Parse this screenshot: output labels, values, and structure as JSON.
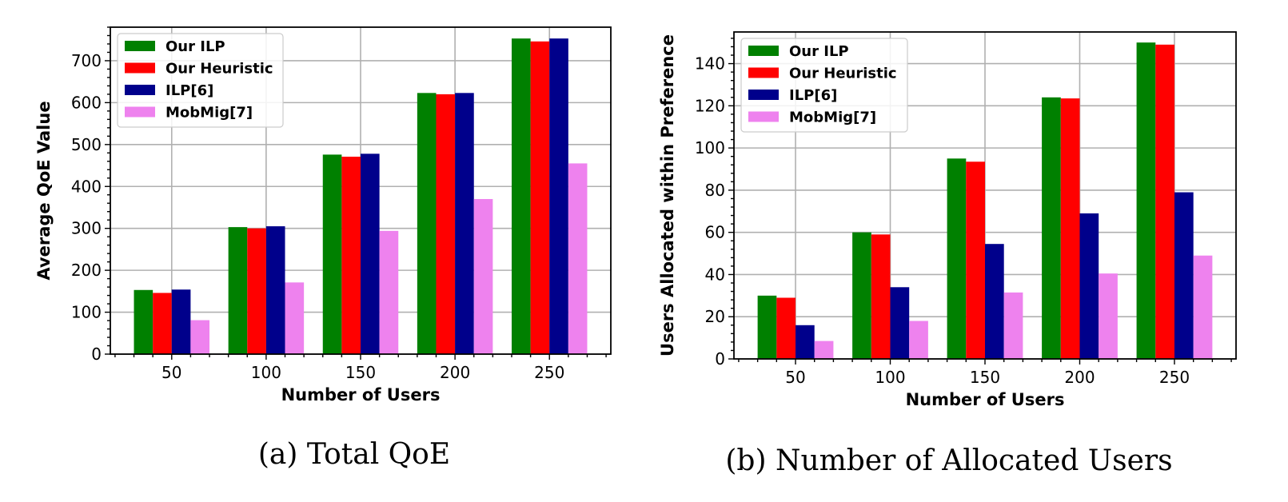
{
  "colors": {
    "Our ILP": "#008000",
    "Our Heuristic": "#ff0000",
    "ILP[6]": "#00008b",
    "MobMig[7]": "#ee82ee"
  },
  "chart_data": [
    {
      "type": "bar",
      "caption": "(a) Total QoE",
      "xlabel": "Number of Users",
      "ylabel": "Average QoE Value",
      "categories": [
        "50",
        "100",
        "150",
        "200",
        "250"
      ],
      "ylim": [
        0,
        780
      ],
      "yticks": [
        0,
        100,
        200,
        300,
        400,
        500,
        600,
        700
      ],
      "grid": true,
      "legend_position": "top-left",
      "series": [
        {
          "name": "Our ILP",
          "values": [
            153,
            303,
            476,
            623,
            753
          ]
        },
        {
          "name": "Our Heuristic",
          "values": [
            146,
            300,
            471,
            620,
            746
          ]
        },
        {
          "name": "ILP[6]",
          "values": [
            154,
            305,
            478,
            623,
            753
          ]
        },
        {
          "name": "MobMig[7]",
          "values": [
            81,
            171,
            294,
            370,
            455
          ]
        }
      ]
    },
    {
      "type": "bar",
      "caption": "(b) Number of Allocated Users",
      "xlabel": "Number of Users",
      "ylabel": "Users Allocated within Preference",
      "categories": [
        "50",
        "100",
        "150",
        "200",
        "250"
      ],
      "ylim": [
        0,
        155
      ],
      "yticks": [
        0,
        20,
        40,
        60,
        80,
        100,
        120,
        140
      ],
      "grid": true,
      "legend_position": "top-left",
      "series": [
        {
          "name": "Our ILP",
          "values": [
            30,
            60,
            95,
            124,
            150
          ]
        },
        {
          "name": "Our Heuristic",
          "values": [
            29,
            59,
            93.5,
            123.5,
            149
          ]
        },
        {
          "name": "ILP[6]",
          "values": [
            16,
            34,
            54.5,
            69,
            79
          ]
        },
        {
          "name": "MobMig[7]",
          "values": [
            8.5,
            18,
            31.5,
            40.5,
            49
          ]
        }
      ]
    }
  ]
}
